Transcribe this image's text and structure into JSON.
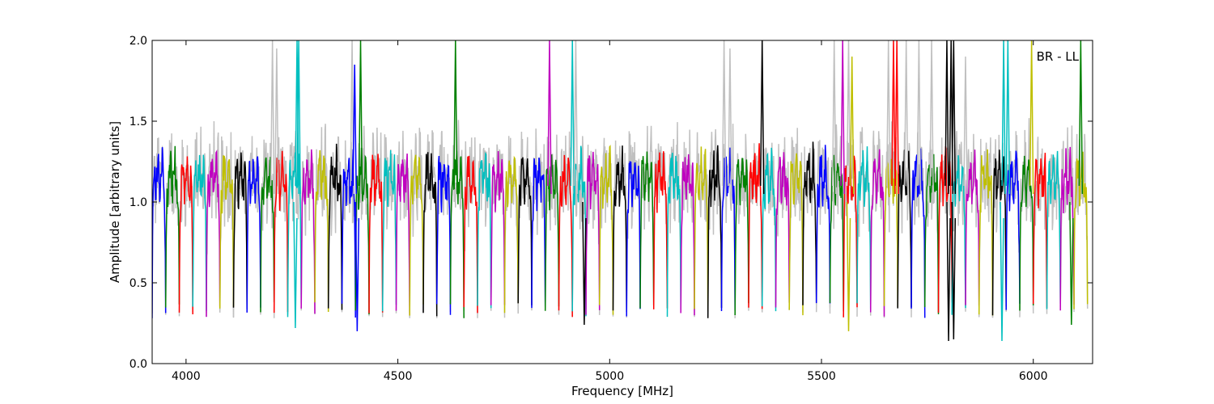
{
  "chart_data": {
    "type": "line",
    "title": "",
    "xlabel": "Frequency [MHz]",
    "ylabel": "Amplitude [arbitrary units]",
    "xlim": [
      3920,
      6140
    ],
    "ylim": [
      0.0,
      2.0
    ],
    "x_ticks": [
      4000,
      4500,
      5000,
      5500,
      6000
    ],
    "y_ticks": [
      0.0,
      0.5,
      1.0,
      1.5,
      2.0
    ],
    "x_tick_labels": [
      "4000",
      "4500",
      "5000",
      "5500",
      "6000"
    ],
    "y_tick_labels": [
      "0.0",
      "0.5",
      "1.0",
      "1.5",
      "2.0"
    ],
    "grid": false,
    "annotation": "BR - LL",
    "annotation_placement": "top-right",
    "background_series_color": "#c0c0c0",
    "color_cycle": [
      "#0000ff",
      "#008000",
      "#ff0000",
      "#00bfbf",
      "#bf00bf",
      "#bfbf00",
      "#000000"
    ],
    "channel_start": 3920,
    "channel_width": 32,
    "channel_count": 69,
    "channel_sample_step": 1,
    "nominal_amplitude": 1.15,
    "edge_amplitude_min": 0.28,
    "spikes": [
      {
        "x": 4204,
        "y": 2.0,
        "color": "#c0c0c0"
      },
      {
        "x": 4214,
        "y": 1.95,
        "color": "#c0c0c0"
      },
      {
        "x": 4262,
        "y": 2.0,
        "color": "#00bfbf"
      },
      {
        "x": 4266,
        "y": 2.0,
        "color": "#00bfbf"
      },
      {
        "x": 4392,
        "y": 2.0,
        "color": "#c0c0c0"
      },
      {
        "x": 4398,
        "y": 1.85,
        "color": "#0000ff"
      },
      {
        "x": 4412,
        "y": 2.0,
        "color": "#008000"
      },
      {
        "x": 4636,
        "y": 2.0,
        "color": "#008000"
      },
      {
        "x": 4858,
        "y": 2.0,
        "color": "#bf00bf"
      },
      {
        "x": 4912,
        "y": 2.0,
        "color": "#00bfbf"
      },
      {
        "x": 4920,
        "y": 2.0,
        "color": "#c0c0c0"
      },
      {
        "x": 5270,
        "y": 2.0,
        "color": "#c0c0c0"
      },
      {
        "x": 5284,
        "y": 1.95,
        "color": "#c0c0c0"
      },
      {
        "x": 5360,
        "y": 2.0,
        "color": "#000000"
      },
      {
        "x": 5530,
        "y": 2.0,
        "color": "#c0c0c0"
      },
      {
        "x": 5550,
        "y": 2.0,
        "color": "#bf00bf"
      },
      {
        "x": 5564,
        "y": 2.0,
        "color": "#c0c0c0"
      },
      {
        "x": 5572,
        "y": 1.9,
        "color": "#bfbf00"
      },
      {
        "x": 5658,
        "y": 2.0,
        "color": "#c0c0c0"
      },
      {
        "x": 5670,
        "y": 2.0,
        "color": "#ff0000"
      },
      {
        "x": 5678,
        "y": 2.0,
        "color": "#ff0000"
      },
      {
        "x": 5700,
        "y": 2.0,
        "color": "#c0c0c0"
      },
      {
        "x": 5730,
        "y": 2.0,
        "color": "#c0c0c0"
      },
      {
        "x": 5760,
        "y": 2.0,
        "color": "#c0c0c0"
      },
      {
        "x": 5796,
        "y": 2.0,
        "color": "#000000"
      },
      {
        "x": 5806,
        "y": 2.0,
        "color": "#000000"
      },
      {
        "x": 5812,
        "y": 2.0,
        "color": "#000000"
      },
      {
        "x": 5840,
        "y": 1.9,
        "color": "#c0c0c0"
      },
      {
        "x": 5930,
        "y": 2.0,
        "color": "#00bfbf"
      },
      {
        "x": 5940,
        "y": 2.0,
        "color": "#00bfbf"
      },
      {
        "x": 5996,
        "y": 2.0,
        "color": "#bfbf00"
      },
      {
        "x": 6112,
        "y": 2.0,
        "color": "#008000"
      }
    ],
    "dips": [
      {
        "x": 4404,
        "y": 0.2,
        "color": "#0000ff"
      },
      {
        "x": 4258,
        "y": 0.22,
        "color": "#00bfbf"
      },
      {
        "x": 4940,
        "y": 0.24,
        "color": "#000000"
      },
      {
        "x": 5800,
        "y": 0.14,
        "color": "#000000"
      },
      {
        "x": 5812,
        "y": 0.15,
        "color": "#000000"
      },
      {
        "x": 5926,
        "y": 0.14,
        "color": "#00bfbf"
      },
      {
        "x": 5564,
        "y": 0.2,
        "color": "#bfbf00"
      },
      {
        "x": 6090,
        "y": 0.24,
        "color": "#008000"
      }
    ]
  }
}
